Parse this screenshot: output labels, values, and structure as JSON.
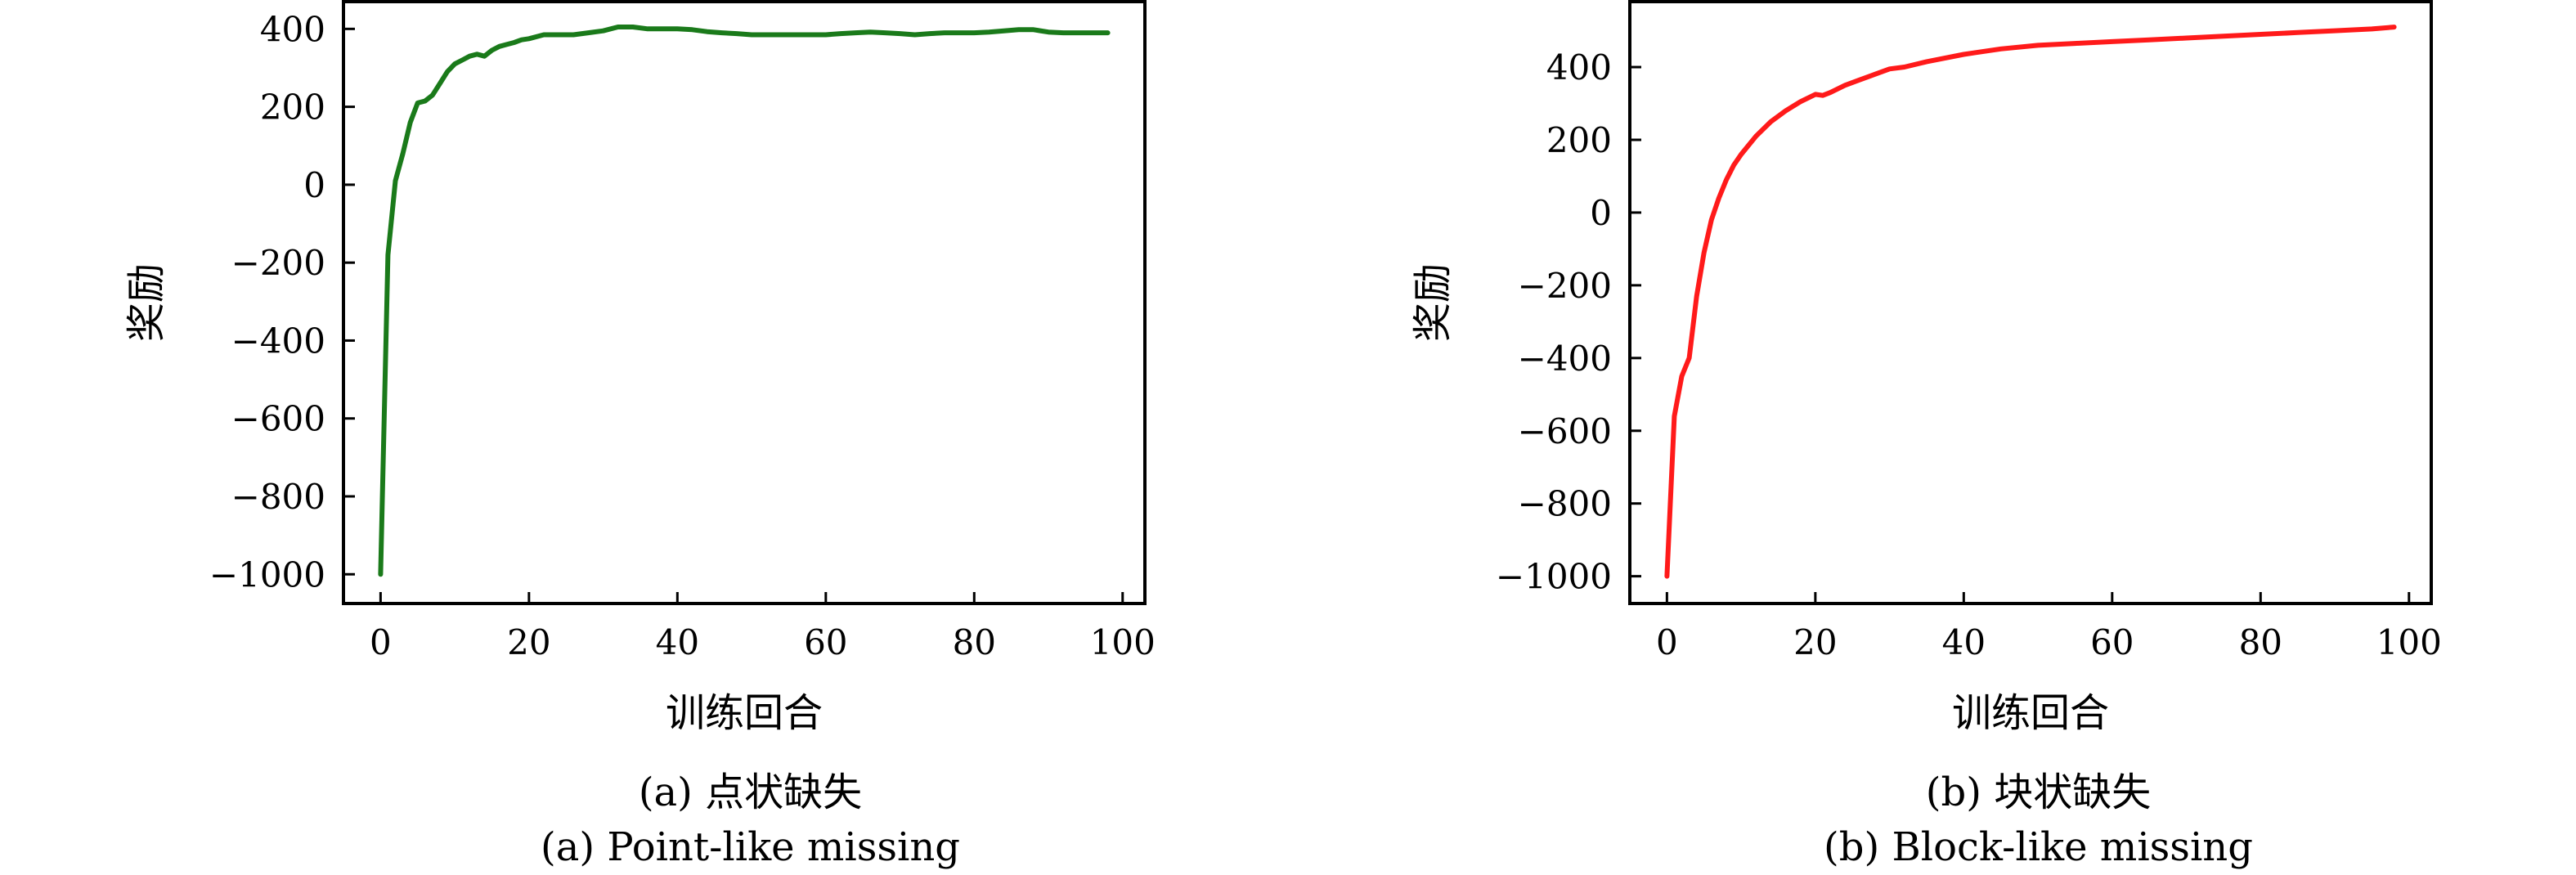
{
  "chart_data": [
    {
      "type": "line",
      "caption_cn": "(a) 点状缺失",
      "caption_en": "(a) Point-like missing",
      "xlabel": "训练回合",
      "ylabel": "奖励",
      "xlim": [
        -5,
        103
      ],
      "ylim": [
        -1075,
        470
      ],
      "xticks": [
        0,
        20,
        40,
        60,
        80,
        100
      ],
      "yticks": [
        -1000,
        -800,
        -600,
        -400,
        -200,
        0,
        200,
        400
      ],
      "color": "#1a7a1a",
      "x": [
        0,
        1,
        2,
        3,
        4,
        5,
        6,
        7,
        8,
        9,
        10,
        11,
        12,
        13,
        14,
        15,
        16,
        17,
        18,
        19,
        20,
        22,
        24,
        26,
        28,
        30,
        32,
        34,
        36,
        38,
        40,
        42,
        44,
        46,
        48,
        50,
        52,
        54,
        56,
        58,
        60,
        62,
        64,
        66,
        68,
        70,
        72,
        74,
        76,
        78,
        80,
        82,
        84,
        86,
        88,
        90,
        92,
        94,
        96,
        98
      ],
      "y": [
        -1000,
        -180,
        10,
        80,
        160,
        210,
        215,
        230,
        260,
        290,
        310,
        320,
        330,
        335,
        330,
        345,
        355,
        360,
        365,
        372,
        375,
        385,
        385,
        385,
        390,
        395,
        405,
        405,
        400,
        400,
        400,
        398,
        393,
        390,
        388,
        385,
        385,
        385,
        385,
        385,
        385,
        388,
        390,
        392,
        390,
        388,
        385,
        388,
        390,
        390,
        390,
        392,
        395,
        398,
        398,
        392,
        390,
        390,
        390,
        390
      ]
    },
    {
      "type": "line",
      "caption_cn": "(b) 块状缺失",
      "caption_en": "(b) Block-like missing",
      "xlabel": "训练回合",
      "ylabel": "奖励",
      "xlim": [
        -5,
        103
      ],
      "ylim": [
        -1075,
        580
      ],
      "xticks": [
        0,
        20,
        40,
        60,
        80,
        100
      ],
      "yticks": [
        -1000,
        -800,
        -600,
        -400,
        -200,
        0,
        200,
        400
      ],
      "color": "#ff1a1a",
      "x": [
        0,
        1,
        2,
        3,
        4,
        5,
        6,
        7,
        8,
        9,
        10,
        12,
        14,
        16,
        18,
        20,
        21,
        22,
        24,
        26,
        28,
        30,
        32,
        35,
        40,
        45,
        50,
        55,
        60,
        65,
        70,
        75,
        80,
        85,
        90,
        95,
        98
      ],
      "y": [
        -1000,
        -560,
        -450,
        -400,
        -230,
        -110,
        -20,
        40,
        90,
        130,
        160,
        210,
        250,
        280,
        305,
        325,
        322,
        330,
        350,
        365,
        380,
        395,
        400,
        415,
        435,
        450,
        460,
        465,
        470,
        475,
        480,
        485,
        490,
        495,
        500,
        505,
        510
      ]
    }
  ]
}
